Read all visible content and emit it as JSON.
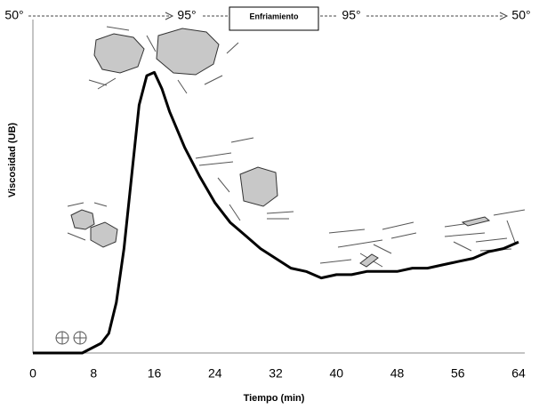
{
  "chart_data": {
    "type": "line",
    "x_label": "Tiempo (min)",
    "y_label": "Viscosidad (UB)",
    "annotations": [
      "50°",
      "95°",
      "Enfriamiento",
      "95°",
      "50°"
    ],
    "x": [
      0,
      6.5,
      9,
      10,
      11,
      12,
      13,
      14,
      15,
      16,
      17,
      18,
      20,
      22,
      24,
      26,
      28,
      30,
      32,
      34,
      36,
      38,
      40,
      42,
      44,
      46,
      48,
      50,
      52,
      54,
      56,
      58,
      60,
      62,
      64
    ],
    "values": [
      0,
      0,
      3,
      6,
      15.5,
      32,
      54,
      76,
      85,
      86,
      81,
      74,
      63,
      54,
      46,
      40,
      36,
      32,
      29,
      26,
      25,
      23,
      24,
      24,
      25,
      25,
      25,
      26,
      26,
      27,
      28,
      29,
      31,
      32,
      34
    ],
    "color": "#000000",
    "xlim": [
      0,
      64
    ],
    "ylim": [
      0,
      100
    ],
    "xticks": [
      0,
      8,
      16,
      24,
      32,
      40,
      48,
      56,
      64
    ]
  }
}
